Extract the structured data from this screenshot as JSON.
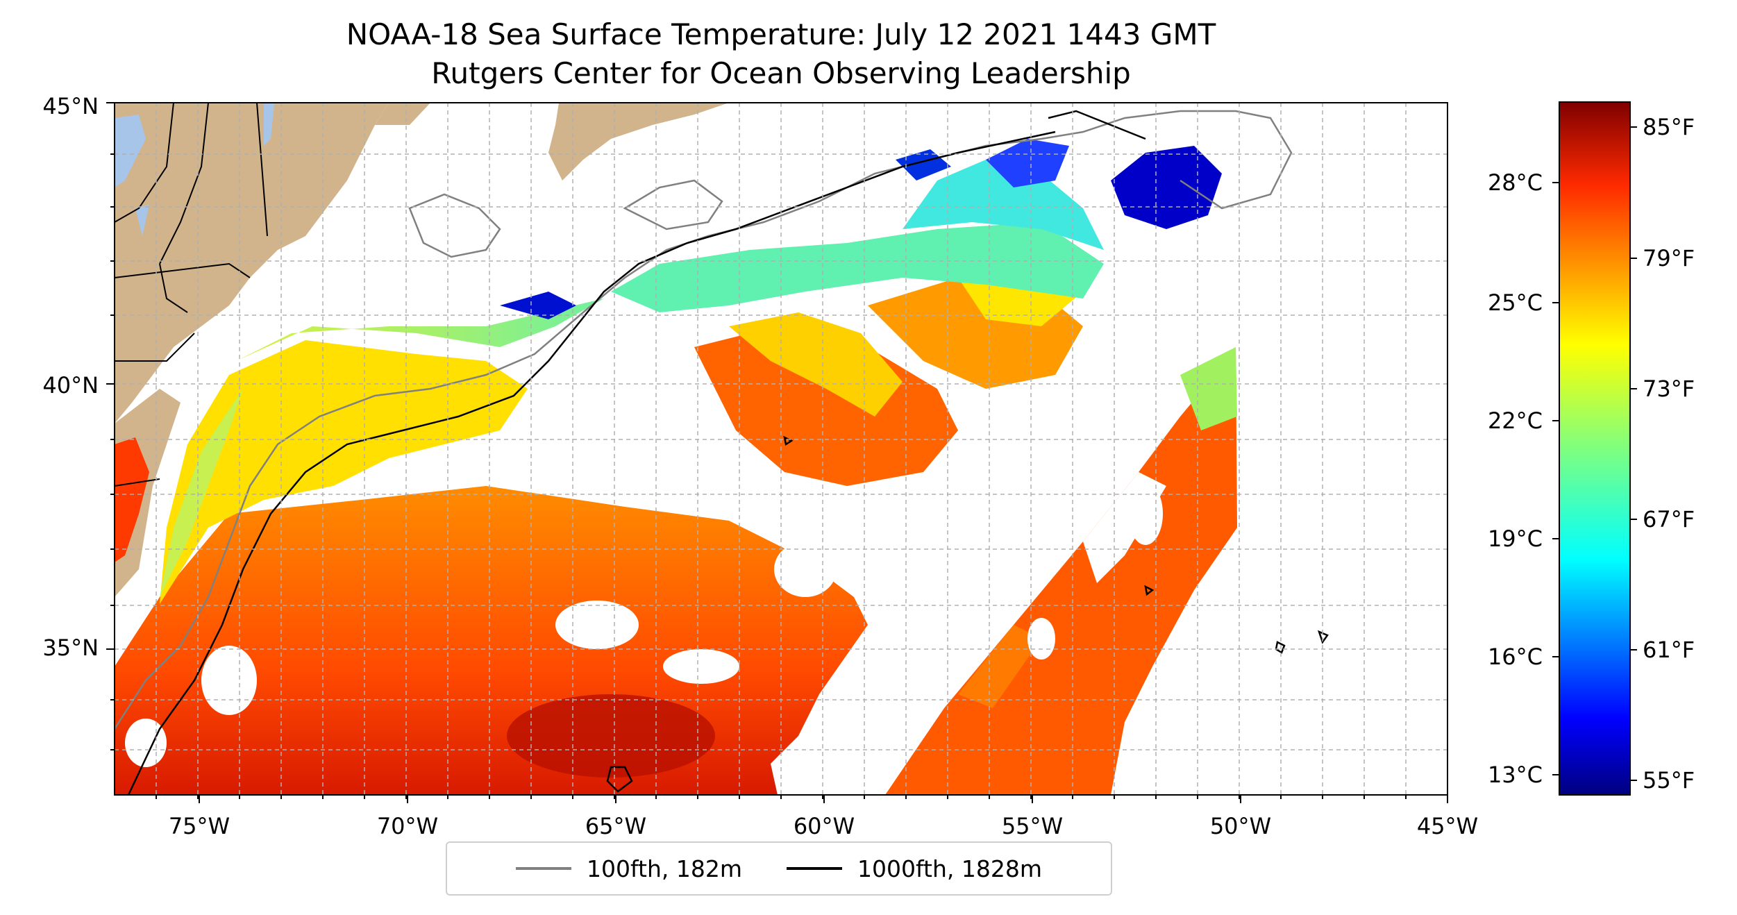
{
  "title_line1": "NOAA-18 Sea Surface Temperature: July 12 2021 1443 GMT",
  "title_line2": "Rutgers Center for Ocean Observing Leadership",
  "lat_ticks": [
    "45°N",
    "40°N",
    "35°N"
  ],
  "lon_ticks": [
    "75°W",
    "70°W",
    "65°W",
    "60°W",
    "55°W",
    "50°W",
    "45°W"
  ],
  "colorbar": {
    "celsius_ticks": [
      "28°C",
      "25°C",
      "22°C",
      "19°C",
      "16°C",
      "13°C"
    ],
    "fahrenheit_ticks": [
      "85°F",
      "79°F",
      "73°F",
      "67°F",
      "61°F",
      "55°F"
    ],
    "colormap_colors": [
      "#00007f",
      "#0000ff",
      "#007fff",
      "#00ffff",
      "#7fff7f",
      "#ffff00",
      "#ff7f00",
      "#ff0000",
      "#7f0000"
    ]
  },
  "legend": {
    "item1": {
      "label": "100fth, 182m",
      "color": "#808080"
    },
    "item2": {
      "label": "1000fth, 1828m",
      "color": "#000000"
    }
  },
  "map_colors": {
    "land": "#d2b48c",
    "lakes": "#a6c5e8",
    "cloud_mask": "#ffffff"
  }
}
